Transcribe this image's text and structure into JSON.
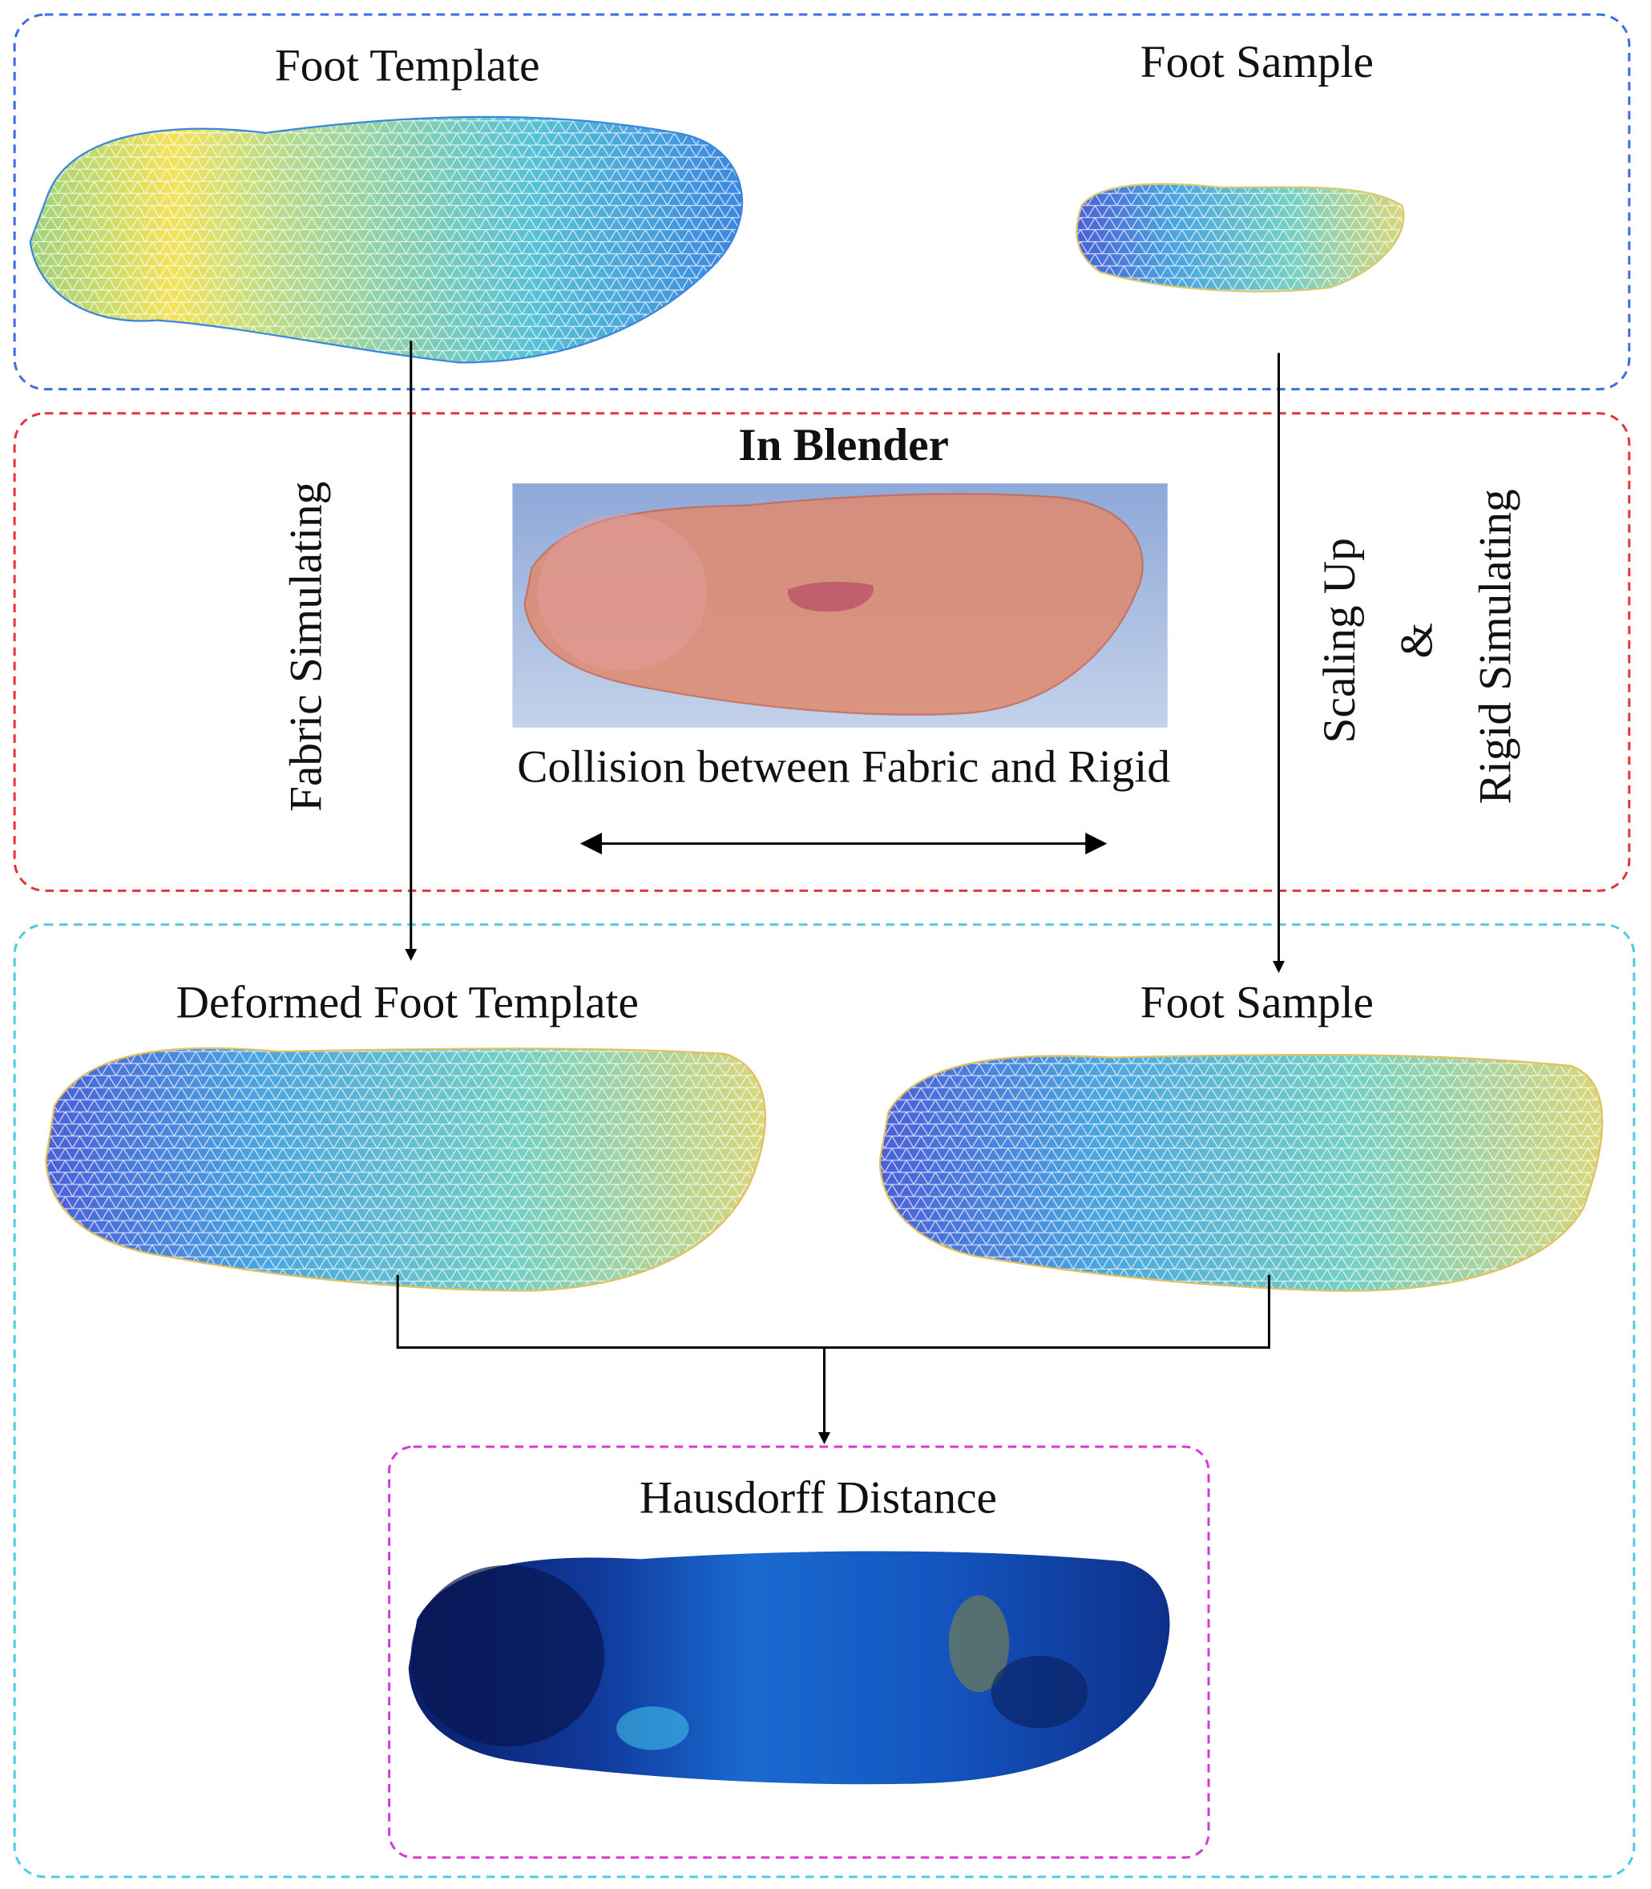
{
  "top_panel": {
    "template_label": "Foot Template",
    "sample_label": "Foot Sample"
  },
  "middle_panel": {
    "title": "In Blender",
    "caption": "Collision between Fabric and Rigid",
    "left_process": "Fabric Simulating",
    "right_process_1": "Scaling Up",
    "right_process_joiner": "&",
    "right_process_2": "Rigid Simulating"
  },
  "bottom_panel": {
    "template_label": "Deformed Foot Template",
    "sample_label": "Foot Sample",
    "result_label": "Hausdorff Distance"
  }
}
